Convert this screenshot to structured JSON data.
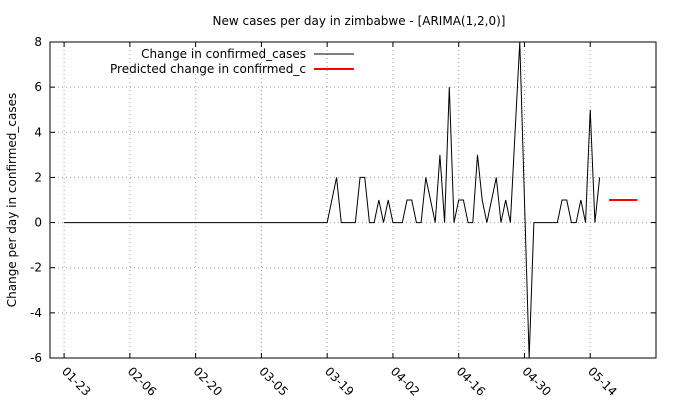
{
  "chart_data": {
    "type": "line",
    "title": "New cases per day in zimbabwe -  [ARIMA(1,2,0)]",
    "xlabel": "",
    "ylabel": "Change per day in confirmed_cases",
    "ylim": [
      -6,
      8
    ],
    "yticks": [
      "-6",
      "-4",
      "-2",
      "0",
      "2",
      "4",
      "6",
      "8"
    ],
    "xlim": [
      "2020-01-20",
      "2020-05-28"
    ],
    "xticks": [
      {
        "date": "2020-01-23",
        "label": "01-23"
      },
      {
        "date": "2020-02-06",
        "label": "02-06"
      },
      {
        "date": "2020-02-20",
        "label": "02-20"
      },
      {
        "date": "2020-03-05",
        "label": "03-05"
      },
      {
        "date": "2020-03-19",
        "label": "03-19"
      },
      {
        "date": "2020-04-02",
        "label": "04-02"
      },
      {
        "date": "2020-04-16",
        "label": "04-16"
      },
      {
        "date": "2020-04-30",
        "label": "04-30"
      },
      {
        "date": "2020-05-14",
        "label": "05-14"
      }
    ],
    "grid": true,
    "legend_position": "top-left",
    "series": [
      {
        "name": "Change in confirmed_cases",
        "color": "#000000",
        "points": [
          [
            "2020-01-23",
            0
          ],
          [
            "2020-03-19",
            0
          ],
          [
            "2020-03-21",
            2
          ],
          [
            "2020-03-22",
            0
          ],
          [
            "2020-03-25",
            0
          ],
          [
            "2020-03-26",
            2
          ],
          [
            "2020-03-27",
            2
          ],
          [
            "2020-03-28",
            0
          ],
          [
            "2020-03-29",
            0
          ],
          [
            "2020-03-30",
            1
          ],
          [
            "2020-03-31",
            0
          ],
          [
            "2020-04-01",
            1
          ],
          [
            "2020-04-02",
            0
          ],
          [
            "2020-04-04",
            0
          ],
          [
            "2020-04-05",
            1
          ],
          [
            "2020-04-06",
            1
          ],
          [
            "2020-04-07",
            0
          ],
          [
            "2020-04-08",
            0
          ],
          [
            "2020-04-09",
            2
          ],
          [
            "2020-04-10",
            1
          ],
          [
            "2020-04-11",
            0
          ],
          [
            "2020-04-12",
            3
          ],
          [
            "2020-04-13",
            0
          ],
          [
            "2020-04-14",
            6
          ],
          [
            "2020-04-15",
            0
          ],
          [
            "2020-04-16",
            1
          ],
          [
            "2020-04-17",
            1
          ],
          [
            "2020-04-18",
            0
          ],
          [
            "2020-04-19",
            0
          ],
          [
            "2020-04-20",
            3
          ],
          [
            "2020-04-21",
            1
          ],
          [
            "2020-04-22",
            0
          ],
          [
            "2020-04-23",
            1
          ],
          [
            "2020-04-24",
            2
          ],
          [
            "2020-04-25",
            0
          ],
          [
            "2020-04-26",
            1
          ],
          [
            "2020-04-27",
            0
          ],
          [
            "2020-04-29",
            8
          ],
          [
            "2020-05-01",
            -6
          ],
          [
            "2020-05-02",
            0
          ],
          [
            "2020-05-07",
            0
          ],
          [
            "2020-05-08",
            1
          ],
          [
            "2020-05-09",
            1
          ],
          [
            "2020-05-10",
            0
          ],
          [
            "2020-05-11",
            0
          ],
          [
            "2020-05-12",
            1
          ],
          [
            "2020-05-13",
            0
          ],
          [
            "2020-05-14",
            5
          ],
          [
            "2020-05-15",
            0
          ],
          [
            "2020-05-16",
            2
          ]
        ]
      },
      {
        "name": "Predicted change in confirmed_c",
        "color": "#ff0000",
        "points": [
          [
            "2020-05-18",
            1
          ],
          [
            "2020-05-24",
            1
          ]
        ]
      }
    ]
  }
}
